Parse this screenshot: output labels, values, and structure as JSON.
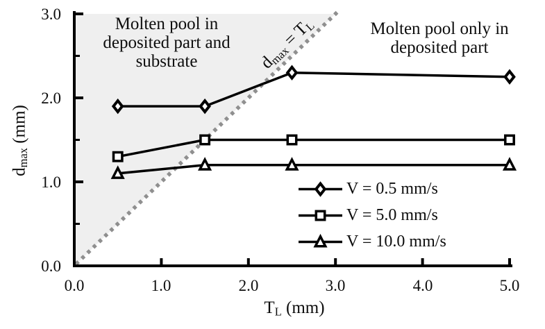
{
  "chart_data": {
    "type": "line",
    "title": "",
    "xlabel": "T_L (mm)",
    "ylabel": "d_max (mm)",
    "xlim": [
      0.0,
      5.0
    ],
    "ylim": [
      0.0,
      3.0
    ],
    "grid": "off",
    "legend_position": "inside-lower-right",
    "x_tick_labels": [
      "0.0",
      "1.0",
      "2.0",
      "3.0",
      "4.0",
      "5.0"
    ],
    "y_tick_labels": [
      "0.0",
      "1.0",
      "2.0",
      "3.0"
    ],
    "x_ticks": [
      1,
      2,
      3,
      4,
      5
    ],
    "y_major_ticks": [
      1,
      2,
      3
    ],
    "y_minor_ticks": [
      0.5,
      1.5,
      2.5
    ],
    "axis_labels": {
      "x_base": "T",
      "x_sub": "L",
      "x_rest": " (mm)",
      "y_base": "d",
      "y_sub": "max",
      "y_rest": " (mm)"
    },
    "x": [
      0.5,
      1.5,
      2.5,
      5.0
    ],
    "series": [
      {
        "name": "V = 0.5 mm/s",
        "marker": "diamond",
        "values": [
          1.9,
          1.9,
          2.3,
          2.25
        ]
      },
      {
        "name": "V = 5.0 mm/s",
        "marker": "square",
        "values": [
          1.3,
          1.5,
          1.5,
          1.5
        ]
      },
      {
        "name": "V = 10.0 mm/s",
        "marker": "triangle",
        "values": [
          1.1,
          1.2,
          1.2,
          1.2
        ]
      }
    ],
    "reference_line": {
      "label": "d_max = T_L",
      "label_parts": {
        "base": "d",
        "sub": "max",
        "mid": " = T",
        "sub2": "L"
      },
      "from": [
        0.0,
        0.0
      ],
      "to": [
        3.05,
        3.05
      ],
      "style": "dotted"
    },
    "shaded_region": {
      "vertices": [
        [
          0,
          0
        ],
        [
          0,
          3
        ],
        [
          3,
          3
        ]
      ],
      "fill": "#efefef"
    },
    "annotations": [
      {
        "text": "Molten pool in\ndeposited part and\nsubstrate",
        "region": "upper-left"
      },
      {
        "text": "Molten pool only in\ndeposited part",
        "region": "upper-right"
      }
    ],
    "colors": {
      "line": "#000000",
      "dash": "#8f8f8f",
      "region": "#efefef",
      "text": "#0d0d0d"
    }
  }
}
